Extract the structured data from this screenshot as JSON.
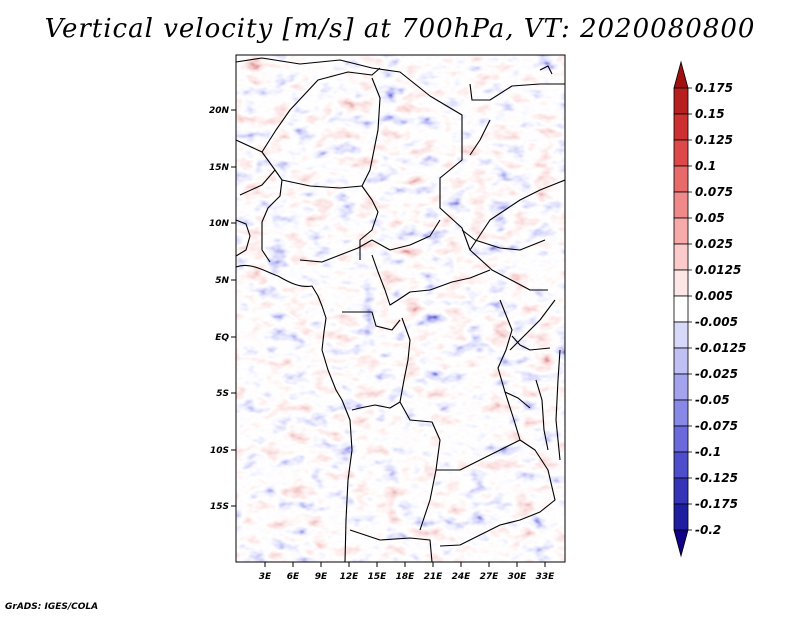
{
  "title": "Vertical velocity [m/s] at 700hPa, VT: 2020080800",
  "footer": "GrADS: IGES/COLA",
  "map": {
    "variable": "Vertical velocity",
    "units": "m/s",
    "level": "700hPa",
    "valid_time": "2020080800",
    "lat_labels": [
      "20N",
      "15N",
      "10N",
      "5N",
      "EQ",
      "5S",
      "10S",
      "15S"
    ],
    "lon_labels": [
      "3E",
      "6E",
      "9E",
      "12E",
      "15E",
      "18E",
      "21E",
      "24E",
      "27E",
      "30E",
      "33E"
    ]
  },
  "colorbar": {
    "levels": [
      "0.175",
      "0.15",
      "0.125",
      "0.1",
      "0.075",
      "0.05",
      "0.025",
      "0.0125",
      "0.005",
      "-0.005",
      "-0.0125",
      "-0.025",
      "-0.05",
      "-0.075",
      "-0.1",
      "-0.125",
      "-0.175",
      "-0.2"
    ],
    "colors": [
      "#a01010",
      "#b82020",
      "#cc3030",
      "#dd4848",
      "#e86a6a",
      "#f08a8a",
      "#f6aaaa",
      "#fbcaca",
      "#fde6e6",
      "#ffffff",
      "#d8d8f8",
      "#c0c0f4",
      "#a4a4ee",
      "#8888e6",
      "#6a6adc",
      "#4e4ecc",
      "#3434b8",
      "#1e1ea0",
      "#100088"
    ]
  }
}
